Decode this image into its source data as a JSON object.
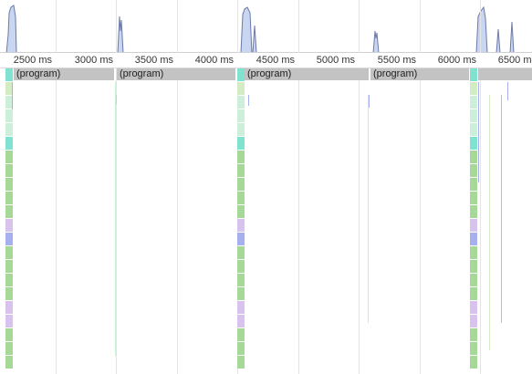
{
  "ruler": {
    "ticks": [
      "2500 ms",
      "3000 ms",
      "3500 ms",
      "4000 ms",
      "4500 ms",
      "5000 ms",
      "5500 ms",
      "6000 ms",
      "6500 ms"
    ]
  },
  "program_bars": [
    {
      "label": "(program)"
    },
    {
      "label": "(program)"
    },
    {
      "label": "(program)"
    },
    {
      "label": "(program)"
    },
    {
      "label": ""
    }
  ],
  "colors": {
    "overview_fill": "#c9d6f2",
    "overview_stroke": "#6b7aa8",
    "program": "#c3c3c3",
    "cyan": "#7fe3cf",
    "mint": "#cdeed9",
    "green": "#a6d898",
    "lavender": "#d8c3ee",
    "blue": "#a7b0ee",
    "pale_green": "#d4ecc4"
  }
}
